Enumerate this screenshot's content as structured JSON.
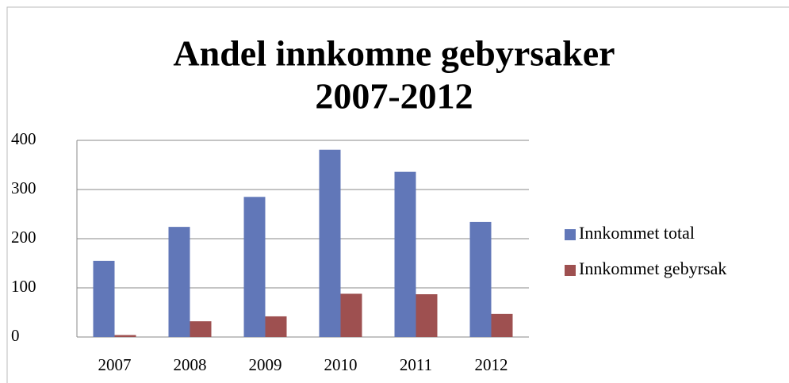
{
  "chart_data": {
    "type": "bar",
    "title": [
      "Andel innkomne gebyrsaker",
      "2007-2012"
    ],
    "categories": [
      "2007",
      "2008",
      "2009",
      "2010",
      "2011",
      "2012"
    ],
    "series": [
      {
        "name": "Innkommet total",
        "color": "#6177b8",
        "values": [
          155,
          224,
          285,
          381,
          336,
          234
        ]
      },
      {
        "name": "Innkommet gebyrsak",
        "color": "#9e5050",
        "values": [
          4,
          32,
          42,
          88,
          87,
          47
        ]
      }
    ],
    "ylim": [
      0,
      400
    ],
    "yticks": [
      0,
      100,
      200,
      300,
      400
    ],
    "grid": true,
    "legend": "right"
  }
}
